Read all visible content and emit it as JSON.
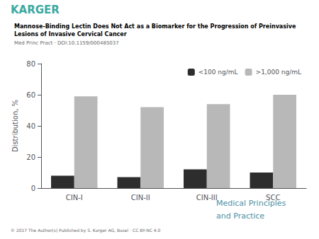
{
  "chart_data": {
    "type": "bar",
    "title": "Mannose-Binding Lectin Does Not Act as a Biomarker for the Progression of Preinvasive\nLesions of Invasive Cervical Cancer",
    "subtitle": "Med Princ Pract · DOI:10.1159/000485037",
    "ylabel": "Distribution, %",
    "categories": [
      "CIN-I",
      "CIN-II",
      "CIN-III",
      "SCC"
    ],
    "series": [
      {
        "name": "<100 ng/mL",
        "color": "#2d2d2d",
        "values": [
          8,
          7,
          12,
          10
        ]
      },
      {
        "name": ">1,000 ng/mL",
        "color": "#b8b8b8",
        "values": [
          59,
          52,
          54,
          60
        ]
      }
    ],
    "ylim": [
      0,
      80
    ],
    "yticks": [
      0,
      20,
      40,
      60,
      80
    ],
    "grid": false,
    "legend": "upper right",
    "annotations": [
      {
        "text": "KARGER",
        "color": "#3aa8a0"
      },
      {
        "text": "© 2017 The Author(s) Published by S. Karger AG, Basel · CC BY-NC 4.0"
      },
      {
        "text": "Medical Principles",
        "color": "#4a90a4"
      },
      {
        "text": "and Practice",
        "color": "#4a90a4"
      }
    ]
  }
}
